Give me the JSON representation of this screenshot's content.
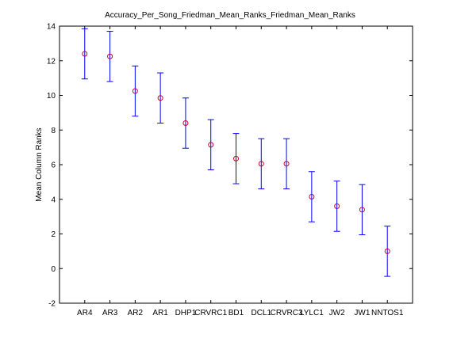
{
  "chart_data": {
    "type": "errorbar",
    "title": "Accuracy_Per_Song_Friedman_Mean_Ranks_Friedman_Mean_Ranks",
    "xlabel": "",
    "ylabel": "Mean Column Ranks",
    "ylim": [
      -2,
      14
    ],
    "yticks": [
      -2,
      0,
      2,
      4,
      6,
      8,
      10,
      12,
      14
    ],
    "grid": false,
    "categories": [
      "AR4",
      "AR3",
      "AR2",
      "AR1",
      "DHP1",
      "CRVRC1",
      "BD1",
      "DCL1",
      "CRVRC3",
      "LYLC1",
      "JW2",
      "JW1",
      "NNTOS1"
    ],
    "means": [
      12.4,
      12.25,
      10.25,
      9.85,
      8.4,
      7.15,
      6.35,
      6.05,
      6.05,
      4.15,
      3.6,
      3.4,
      1.0
    ],
    "lower": [
      10.95,
      10.8,
      8.8,
      8.4,
      6.95,
      5.7,
      4.9,
      4.6,
      4.6,
      2.7,
      2.15,
      1.95,
      -0.45
    ],
    "upper": [
      13.85,
      13.7,
      11.7,
      11.3,
      9.85,
      8.6,
      7.8,
      7.5,
      7.5,
      5.6,
      5.05,
      4.85,
      2.45
    ],
    "colors": {
      "errorbar": "#0000ff",
      "marker": "#cc0033",
      "axis": "#000000"
    }
  }
}
